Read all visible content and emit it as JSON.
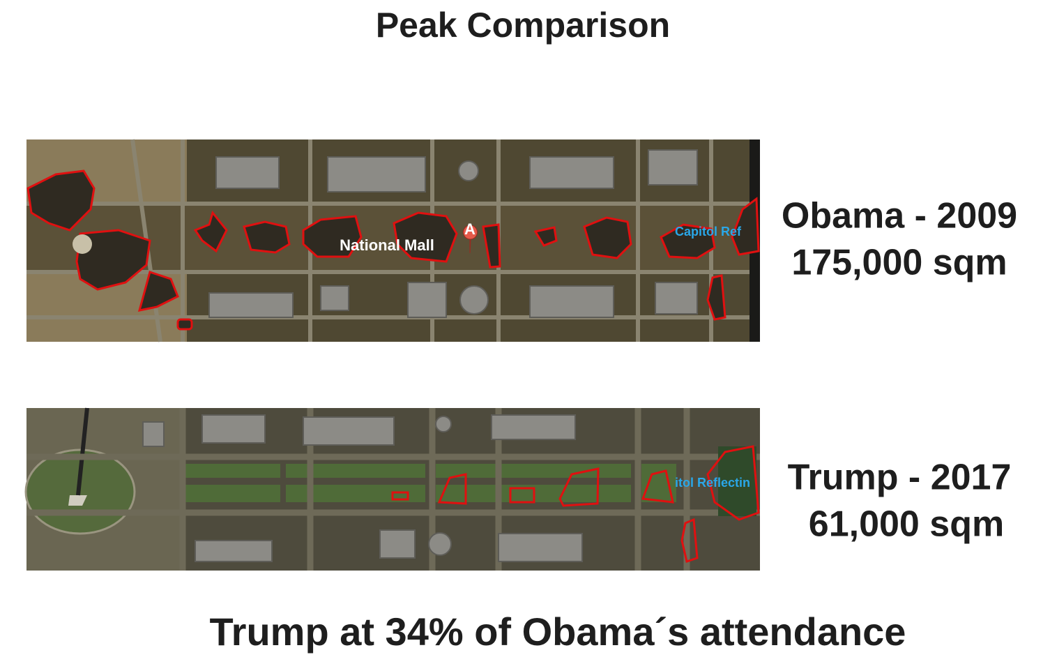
{
  "title": "Peak Comparison",
  "panels": [
    {
      "label": "Obama - 2009",
      "area": "175,000 sqm",
      "map_labels": [
        "National Mall",
        "Capitol Ref",
        "A"
      ]
    },
    {
      "label": "Trump - 2017",
      "area": "61,000 sqm",
      "map_labels": [
        "itol Reflectin"
      ]
    }
  ],
  "footer": "Trump at 34% of Obama´s attendance"
}
